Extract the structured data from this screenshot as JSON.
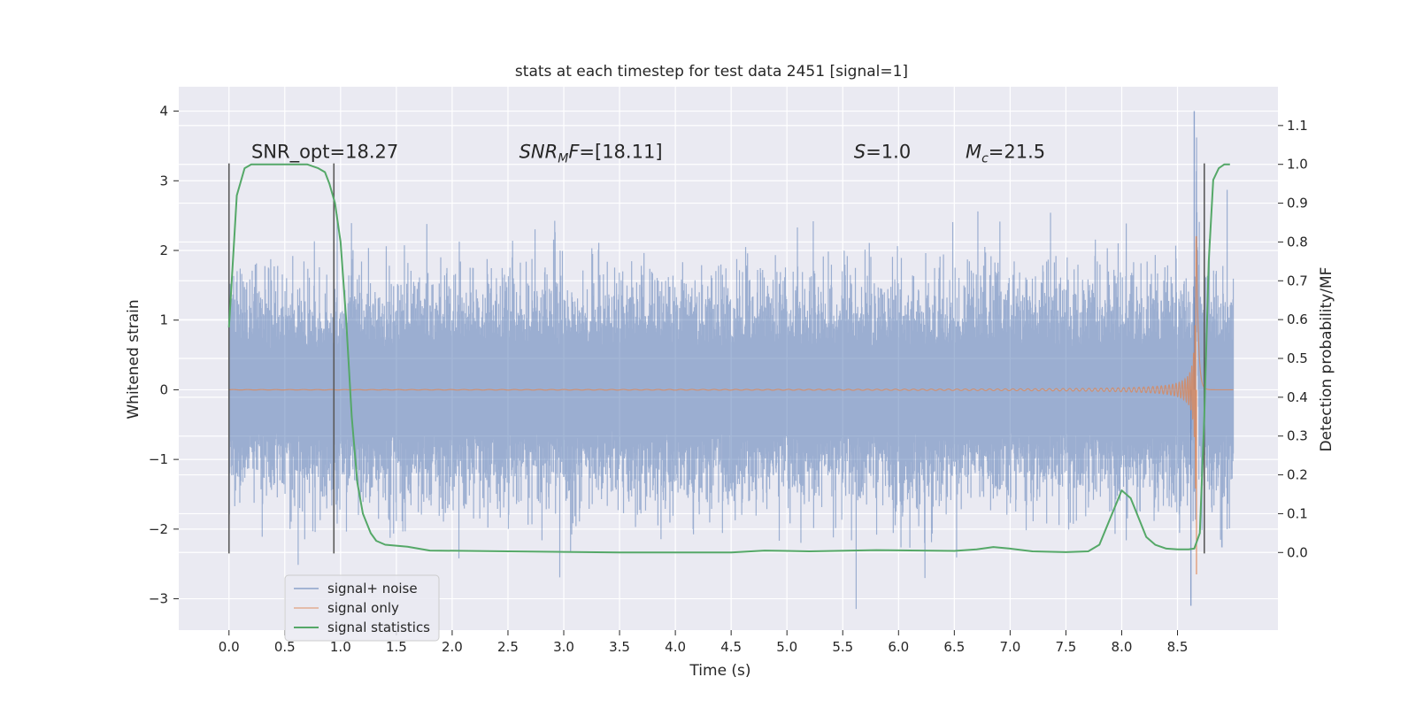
{
  "chart_data": {
    "type": "line",
    "title": "stats at each timestep for test data 2451 [signal=1]",
    "xlabel": "Time (s)",
    "ylabel_left": "Whitened strain",
    "ylabel_right": "Detection probability/MF",
    "xlim": [
      -0.45,
      9.4
    ],
    "ylim_left": [
      -3.45,
      4.35
    ],
    "ylim_right": [
      -0.2,
      1.2
    ],
    "x_ticks": [
      "0.0",
      "0.5",
      "1.0",
      "1.5",
      "2.0",
      "2.5",
      "3.0",
      "3.5",
      "4.0",
      "4.5",
      "5.0",
      "5.5",
      "6.0",
      "6.5",
      "7.0",
      "7.5",
      "8.0",
      "8.5"
    ],
    "y_ticks_left": [
      "4",
      "3",
      "2",
      "1",
      "0",
      "−1",
      "−2",
      "−3"
    ],
    "y_ticks_right": [
      "1.1",
      "1.0",
      "0.9",
      "0.8",
      "0.7",
      "0.6",
      "0.5",
      "0.4",
      "0.3",
      "0.2",
      "0.1",
      "0.0"
    ],
    "grid": true,
    "legend_position": "lower-left",
    "series": [
      {
        "name": "signal+ noise",
        "color": "#4c72b0",
        "x_range": [
          0.0,
          9.0
        ],
        "typical_abs_peak": 1.3,
        "max": 4.0,
        "min": -3.1
      },
      {
        "name": "signal only",
        "color": "#dd8452",
        "x_range": [
          0.0,
          9.0
        ],
        "description_of_shape": "chirp",
        "peak_time": 8.67,
        "peak_amplitude": 2.4,
        "min": -2.65
      },
      {
        "name": "signal statistics",
        "color": "#55a868",
        "axis": "right",
        "x": [
          0.0,
          0.07,
          0.14,
          0.2,
          0.3,
          0.5,
          0.7,
          0.8,
          0.86,
          0.9,
          0.95,
          1.0,
          1.05,
          1.1,
          1.15,
          1.2,
          1.27,
          1.32,
          1.4,
          1.6,
          1.8,
          2.5,
          3.5,
          4.5,
          4.8,
          5.2,
          5.8,
          6.5,
          6.7,
          6.85,
          7.0,
          7.2,
          7.5,
          7.7,
          7.8,
          7.9,
          8.0,
          8.08,
          8.15,
          8.22,
          8.3,
          8.4,
          8.5,
          8.6,
          8.65,
          8.7,
          8.74,
          8.78,
          8.82,
          8.87,
          8.92,
          8.97
        ],
        "y": [
          0.58,
          0.92,
          0.99,
          1.0,
          1.0,
          1.0,
          1.0,
          0.99,
          0.98,
          0.95,
          0.9,
          0.8,
          0.6,
          0.35,
          0.18,
          0.1,
          0.05,
          0.03,
          0.02,
          0.015,
          0.005,
          0.003,
          0.0,
          0.0,
          0.005,
          0.003,
          0.006,
          0.004,
          0.008,
          0.014,
          0.01,
          0.003,
          0.001,
          0.003,
          0.02,
          0.09,
          0.16,
          0.14,
          0.09,
          0.04,
          0.02,
          0.01,
          0.008,
          0.008,
          0.01,
          0.05,
          0.35,
          0.75,
          0.96,
          0.99,
          1.0,
          1.0
        ]
      }
    ],
    "vertical_lines": [
      {
        "x": 0.0,
        "y0": -2.35,
        "y1": 3.25
      },
      {
        "x": 0.94,
        "y0": -2.35,
        "y1": 3.25
      },
      {
        "x": 8.74,
        "y0": -2.35,
        "y1": 3.25
      }
    ],
    "annotations": [
      {
        "text": "SNR_opt=18.27",
        "x": 0.2,
        "y": 3.33
      },
      {
        "text": "=[18.11]",
        "prefix_italic": "SNR",
        "subscript": "M",
        "suffix_italic": "F",
        "x": 2.6,
        "y": 3.33
      },
      {
        "text": "=1.0",
        "prefix_italic": "S",
        "x": 5.6,
        "y": 3.33
      },
      {
        "text": "=21.5",
        "prefix_italic": "M",
        "subscript": "c",
        "x": 6.6,
        "y": 3.33
      }
    ]
  }
}
